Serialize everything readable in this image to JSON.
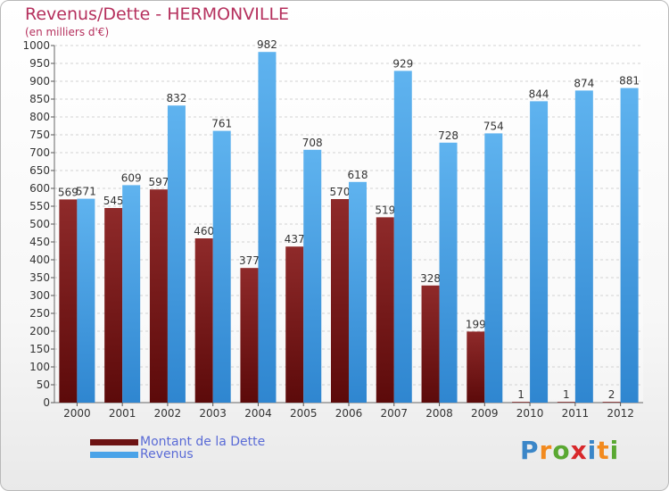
{
  "header": {
    "title": "Revenus/Dette - HERMONVILLE",
    "subtitle": "(en milliers d'€)"
  },
  "colors": {
    "debt": "#7a1a1a",
    "debt_light": "#8a2a2a",
    "revenue": "#4aa3e8",
    "revenue_light": "#5fb2ee",
    "text": "#333333",
    "accent": "#b5305d",
    "legend_text": "#5a6bd6"
  },
  "chart_data": {
    "type": "bar",
    "title": "Revenus/Dette - HERMONVILLE",
    "ylabel": "(en milliers d'€)",
    "xlabel": "",
    "ylim": [
      0,
      1000
    ],
    "ytick_step": 50,
    "grid": true,
    "legend_position": "bottom-left",
    "categories": [
      "2000",
      "2001",
      "2002",
      "2003",
      "2004",
      "2005",
      "2006",
      "2007",
      "2008",
      "2009",
      "2010",
      "2011",
      "2012"
    ],
    "series": [
      {
        "name": "Montant de la Dette",
        "values": [
          569,
          545,
          597,
          460,
          377,
          437,
          570,
          519,
          328,
          199,
          1,
          1,
          2
        ]
      },
      {
        "name": "Revenus",
        "values": [
          571,
          609,
          832,
          761,
          982,
          708,
          618,
          929,
          728,
          754,
          844,
          874,
          881
        ]
      }
    ]
  },
  "legend": {
    "items": [
      {
        "label": "Montant de la Dette"
      },
      {
        "label": "Revenus"
      }
    ]
  },
  "logo": {
    "letters": [
      "P",
      "r",
      "o",
      "x",
      "i",
      "t",
      "i"
    ],
    "colors": [
      "#3a86c8",
      "#f28a1e",
      "#5aa832",
      "#d8282b",
      "#3a86c8",
      "#f28a1e",
      "#5aa832"
    ]
  }
}
